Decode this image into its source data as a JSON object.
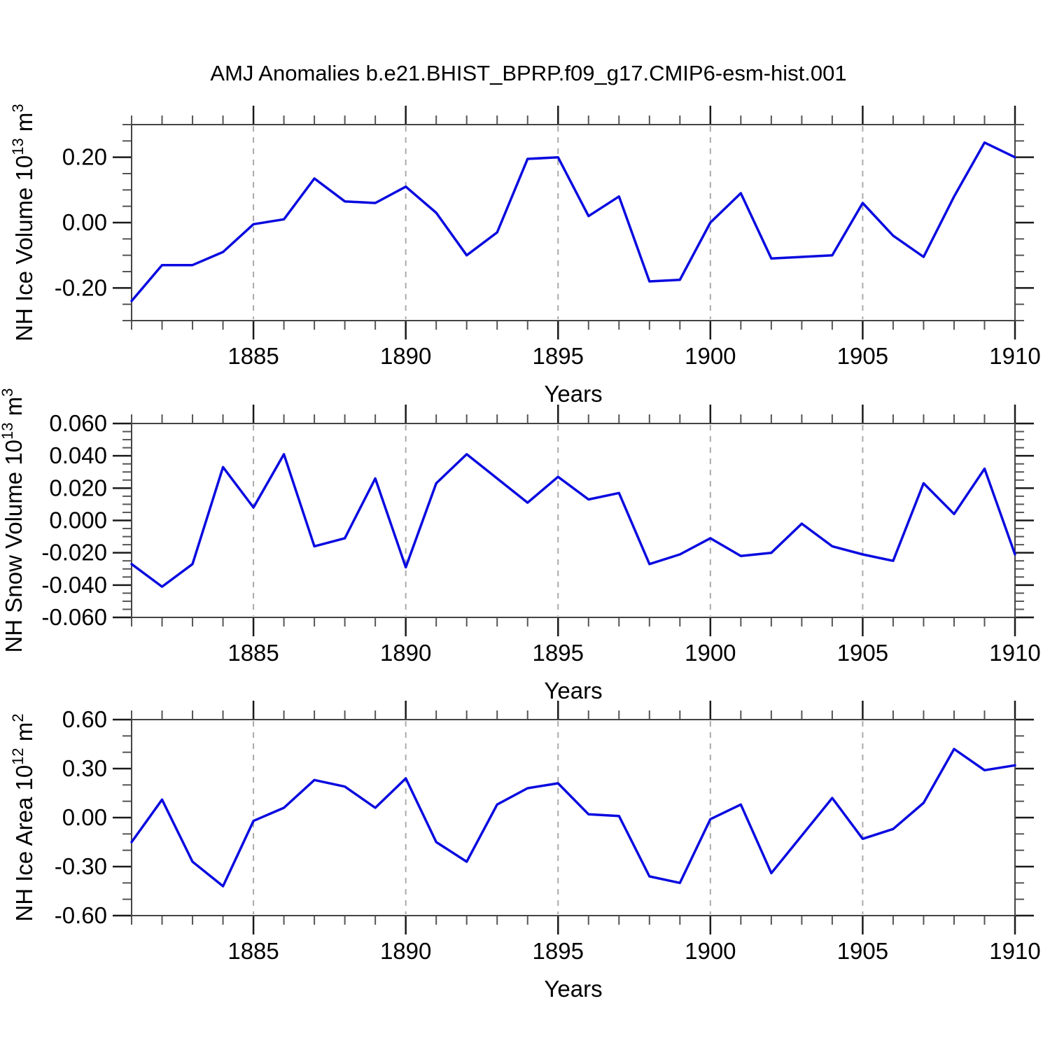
{
  "title": "AMJ Anomalies b.e21.BHIST_BPRP.f09_g17.CMIP6-esm-hist.001",
  "style": {
    "line_color": "#0a0ae0",
    "axis_color": "#444444",
    "major_tick_color": "#1a1a1a",
    "minor_tick_color": "#555555",
    "grid_color": "#aaaaaa",
    "background": "#ffffff",
    "text_color": "#000000"
  },
  "x_axis": {
    "label": "Years",
    "range": [
      1881,
      1910
    ],
    "years": [
      1881,
      1882,
      1883,
      1884,
      1885,
      1886,
      1887,
      1888,
      1889,
      1890,
      1891,
      1892,
      1893,
      1894,
      1895,
      1896,
      1897,
      1898,
      1899,
      1900,
      1901,
      1902,
      1903,
      1904,
      1905,
      1906,
      1907,
      1908,
      1909,
      1910
    ],
    "major_ticks": [
      1885,
      1890,
      1895,
      1900,
      1905,
      1910
    ],
    "major_tick_labels": [
      "1885",
      "1890",
      "1895",
      "1900",
      "1905",
      "1910"
    ],
    "minor_step": 1,
    "gridlines": [
      1885,
      1890,
      1895,
      1900,
      1905
    ]
  },
  "chart_data": [
    {
      "type": "line",
      "name": "nh-ice-volume",
      "ylabel_text": "NH Ice Volume 10^13 m^3",
      "ylabel_parts": [
        {
          "t": "NH Ice Volume 10",
          "sup": false
        },
        {
          "t": "13",
          "sup": true
        },
        {
          "t": " m",
          "sup": false
        },
        {
          "t": "3",
          "sup": true
        }
      ],
      "xlabel": "Years",
      "ylim": [
        -0.3,
        0.3
      ],
      "yticks": [
        {
          "v": 0.2,
          "label": "0.20"
        },
        {
          "v": 0.0,
          "label": "0.00"
        },
        {
          "v": -0.2,
          "label": "-0.20"
        }
      ],
      "yminor_step": 0.05,
      "grid": "vertical-dashed",
      "legend": "none",
      "values": [
        -0.24,
        -0.13,
        -0.13,
        -0.09,
        -0.005,
        0.01,
        0.135,
        0.065,
        0.06,
        0.11,
        0.03,
        -0.1,
        -0.03,
        0.195,
        0.2,
        0.02,
        0.08,
        -0.18,
        -0.175,
        0.0,
        0.09,
        -0.11,
        -0.105,
        -0.1,
        0.06,
        -0.04,
        -0.105,
        0.08,
        0.245,
        0.2
      ]
    },
    {
      "type": "line",
      "name": "nh-snow-volume",
      "ylabel_text": "NH Snow Volume 10^13 m^3",
      "ylabel_parts": [
        {
          "t": "NH Snow Volume 10",
          "sup": false
        },
        {
          "t": "13",
          "sup": true
        },
        {
          "t": " m",
          "sup": false
        },
        {
          "t": "3",
          "sup": true
        }
      ],
      "xlabel": "Years",
      "ylim": [
        -0.06,
        0.06
      ],
      "yticks": [
        {
          "v": 0.06,
          "label": "0.060"
        },
        {
          "v": 0.04,
          "label": "0.040"
        },
        {
          "v": 0.02,
          "label": "0.020"
        },
        {
          "v": 0.0,
          "label": "0.000"
        },
        {
          "v": -0.02,
          "label": "-0.020"
        },
        {
          "v": -0.04,
          "label": "-0.040"
        },
        {
          "v": -0.06,
          "label": "-0.060"
        }
      ],
      "yminor_step": 0.005,
      "grid": "vertical-dashed",
      "legend": "none",
      "values": [
        -0.027,
        -0.041,
        -0.027,
        0.033,
        0.008,
        0.041,
        -0.016,
        -0.011,
        0.026,
        -0.029,
        0.023,
        0.041,
        0.026,
        0.011,
        0.027,
        0.013,
        0.017,
        -0.027,
        -0.021,
        -0.011,
        -0.022,
        -0.02,
        -0.002,
        -0.016,
        -0.021,
        -0.025,
        0.023,
        0.004,
        0.032,
        -0.021
      ]
    },
    {
      "type": "line",
      "name": "nh-ice-area",
      "ylabel_text": "NH Ice Area 10^12 m^2",
      "ylabel_parts": [
        {
          "t": "NH Ice Area 10",
          "sup": false
        },
        {
          "t": "12",
          "sup": true
        },
        {
          "t": " m",
          "sup": false
        },
        {
          "t": "2",
          "sup": true
        }
      ],
      "xlabel": "Years",
      "ylim": [
        -0.6,
        0.6
      ],
      "yticks": [
        {
          "v": 0.6,
          "label": "0.60"
        },
        {
          "v": 0.3,
          "label": "0.30"
        },
        {
          "v": 0.0,
          "label": "0.00"
        },
        {
          "v": -0.3,
          "label": "-0.30"
        },
        {
          "v": -0.6,
          "label": "-0.60"
        }
      ],
      "yminor_step": 0.1,
      "grid": "vertical-dashed",
      "legend": "none",
      "values": [
        -0.15,
        0.11,
        -0.27,
        -0.42,
        -0.02,
        0.06,
        0.23,
        0.19,
        0.06,
        0.24,
        -0.15,
        -0.27,
        0.08,
        0.18,
        0.21,
        0.02,
        0.01,
        -0.36,
        -0.4,
        -0.01,
        0.08,
        -0.34,
        -0.11,
        0.12,
        -0.13,
        -0.07,
        0.09,
        0.42,
        0.29,
        0.32
      ]
    }
  ]
}
